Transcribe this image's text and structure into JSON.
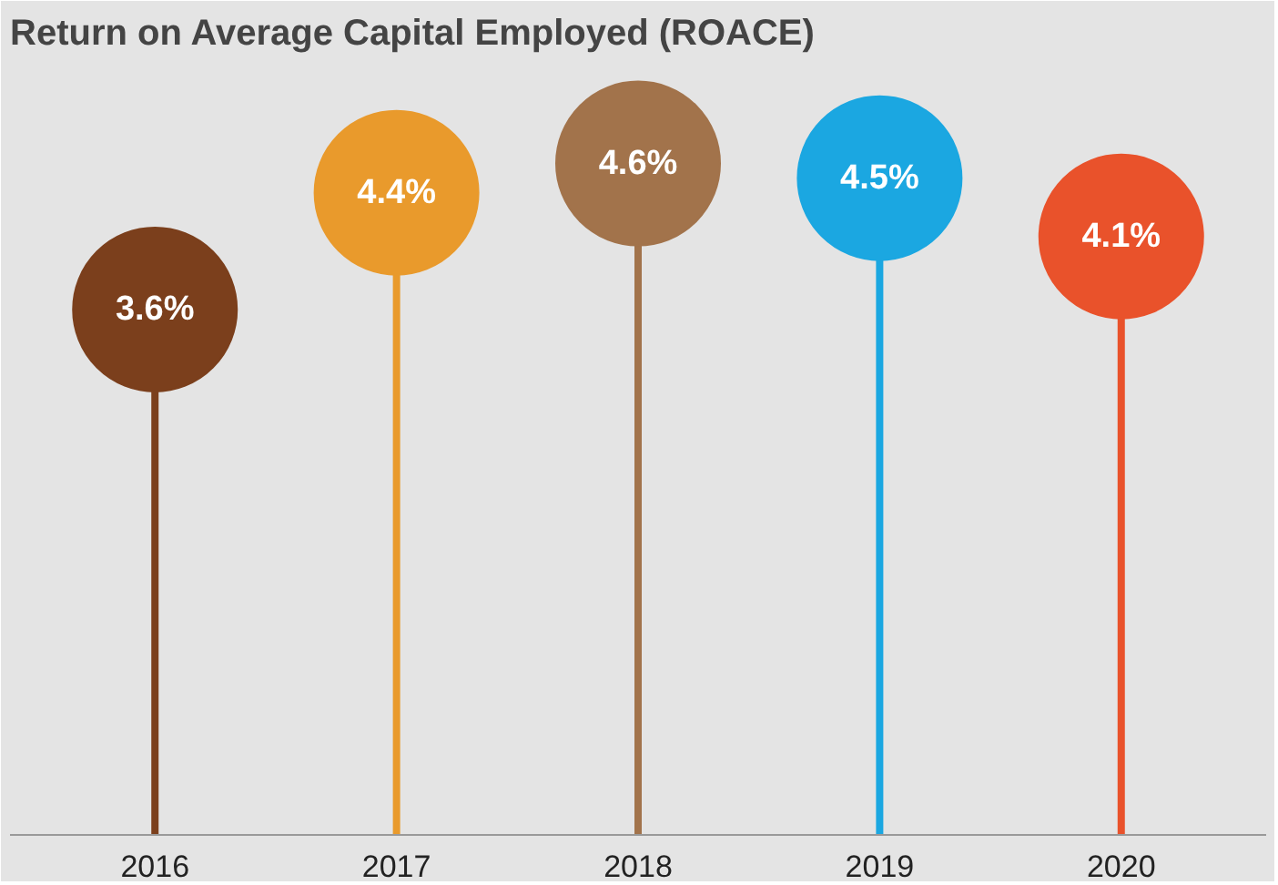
{
  "chart_data": {
    "type": "lollipop",
    "title": "Return on Average Capital Employed (ROACE)",
    "categories": [
      "2016",
      "2017",
      "2018",
      "2019",
      "2020"
    ],
    "values": [
      3.6,
      4.4,
      4.6,
      4.5,
      4.1
    ],
    "colors": [
      "#7b3f1c",
      "#e99a2c",
      "#a2734b",
      "#1ba7e1",
      "#e9522b"
    ],
    "value_labels": [
      "3.6%",
      "4.4%",
      "4.6%",
      "4.5%",
      "4.1%"
    ],
    "tick_labels": "x"
  }
}
